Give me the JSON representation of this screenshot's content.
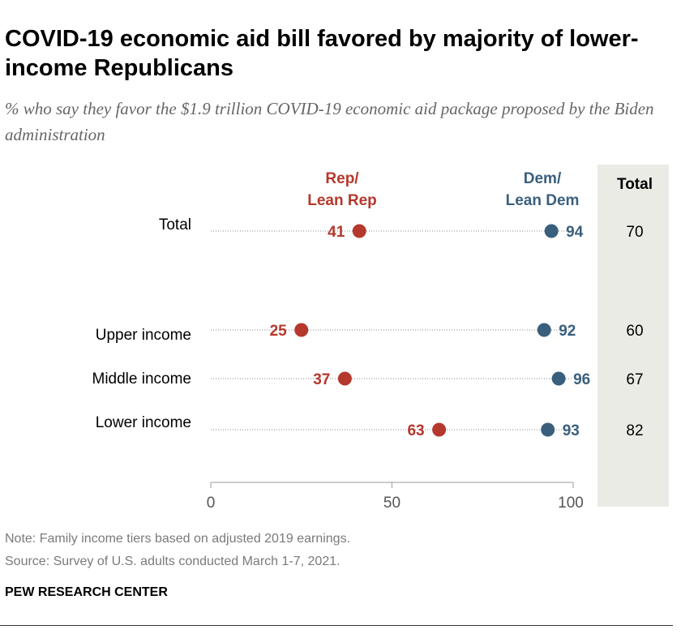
{
  "title": "COVID-19 economic aid bill favored by majority of lower-income Republicans",
  "subtitle": "% who say they favor the $1.9 trillion COVID-19 economic aid package proposed by the Biden administration",
  "note": "Note: Family income tiers based on adjusted 2019 earnings.",
  "source": "Source: Survey of U.S. adults conducted March 1-7, 2021.",
  "brand": "PEW RESEARCH CENTER",
  "colors": {
    "rep": "#b5382c",
    "dem": "#3a5f7d",
    "total_bg": "#ebebe6"
  },
  "chart_data": {
    "type": "dot",
    "title": "COVID-19 economic aid bill favored by majority of lower-income Republicans",
    "xlim": [
      0,
      100
    ],
    "x_ticks": [
      0,
      50,
      100
    ],
    "categories": [
      "Total",
      "Upper income",
      "Middle income",
      "Lower income"
    ],
    "series": [
      {
        "name": "Rep/\nLean Rep",
        "label_lines": [
          "Rep/",
          "Lean Rep"
        ],
        "color": "#b5382c",
        "values": [
          41,
          25,
          37,
          63
        ]
      },
      {
        "name": "Dem/\nLean Dem",
        "label_lines": [
          "Dem/",
          "Lean Dem"
        ],
        "color": "#3a5f7d",
        "values": [
          94,
          92,
          96,
          93
        ]
      }
    ],
    "total_column": {
      "header": "Total",
      "values": [
        70,
        60,
        67,
        82
      ]
    }
  }
}
